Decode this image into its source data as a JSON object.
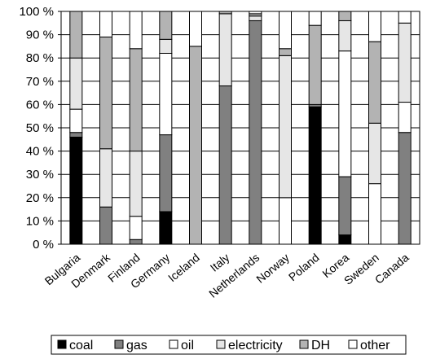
{
  "chart_data": {
    "type": "bar",
    "stacked": true,
    "categories": [
      "Bulgaria",
      "Denmark",
      "Finland",
      "Germany",
      "Iceland",
      "Italy",
      "Netherlands",
      "Norway",
      "Poland",
      "Korea",
      "Sweden",
      "Canada"
    ],
    "ylim": [
      0,
      100
    ],
    "yticks": [
      0,
      10,
      20,
      30,
      40,
      50,
      60,
      70,
      80,
      90,
      100
    ],
    "ytick_suffix": " %",
    "grid": true,
    "legend_position": "bottom",
    "series": [
      {
        "name": "coal",
        "color": "#000000",
        "values": [
          46,
          0,
          0,
          14,
          0,
          0,
          0,
          0,
          59,
          4,
          0,
          0
        ]
      },
      {
        "name": "gas",
        "color": "#808080",
        "values": [
          2,
          16,
          2,
          33,
          0,
          68,
          96,
          0,
          1,
          25,
          0,
          48
        ]
      },
      {
        "name": "oil",
        "color": "#ffffff",
        "values": [
          10,
          0,
          10,
          35,
          0,
          0,
          0,
          20,
          0,
          54,
          26,
          13
        ]
      },
      {
        "name": "electricity",
        "color": "#e6e6e6",
        "values": [
          22,
          25,
          28,
          6,
          0,
          31,
          2,
          61,
          0,
          13,
          26,
          34
        ]
      },
      {
        "name": "DH",
        "color": "#b3b3b3",
        "values": [
          20,
          48,
          44,
          12,
          85,
          1,
          1,
          3,
          34,
          4,
          35,
          0
        ]
      },
      {
        "name": "other",
        "color": "#ffffff",
        "values": [
          0,
          11,
          16,
          0,
          15,
          0,
          1,
          16,
          6,
          0,
          13,
          5
        ]
      }
    ]
  }
}
